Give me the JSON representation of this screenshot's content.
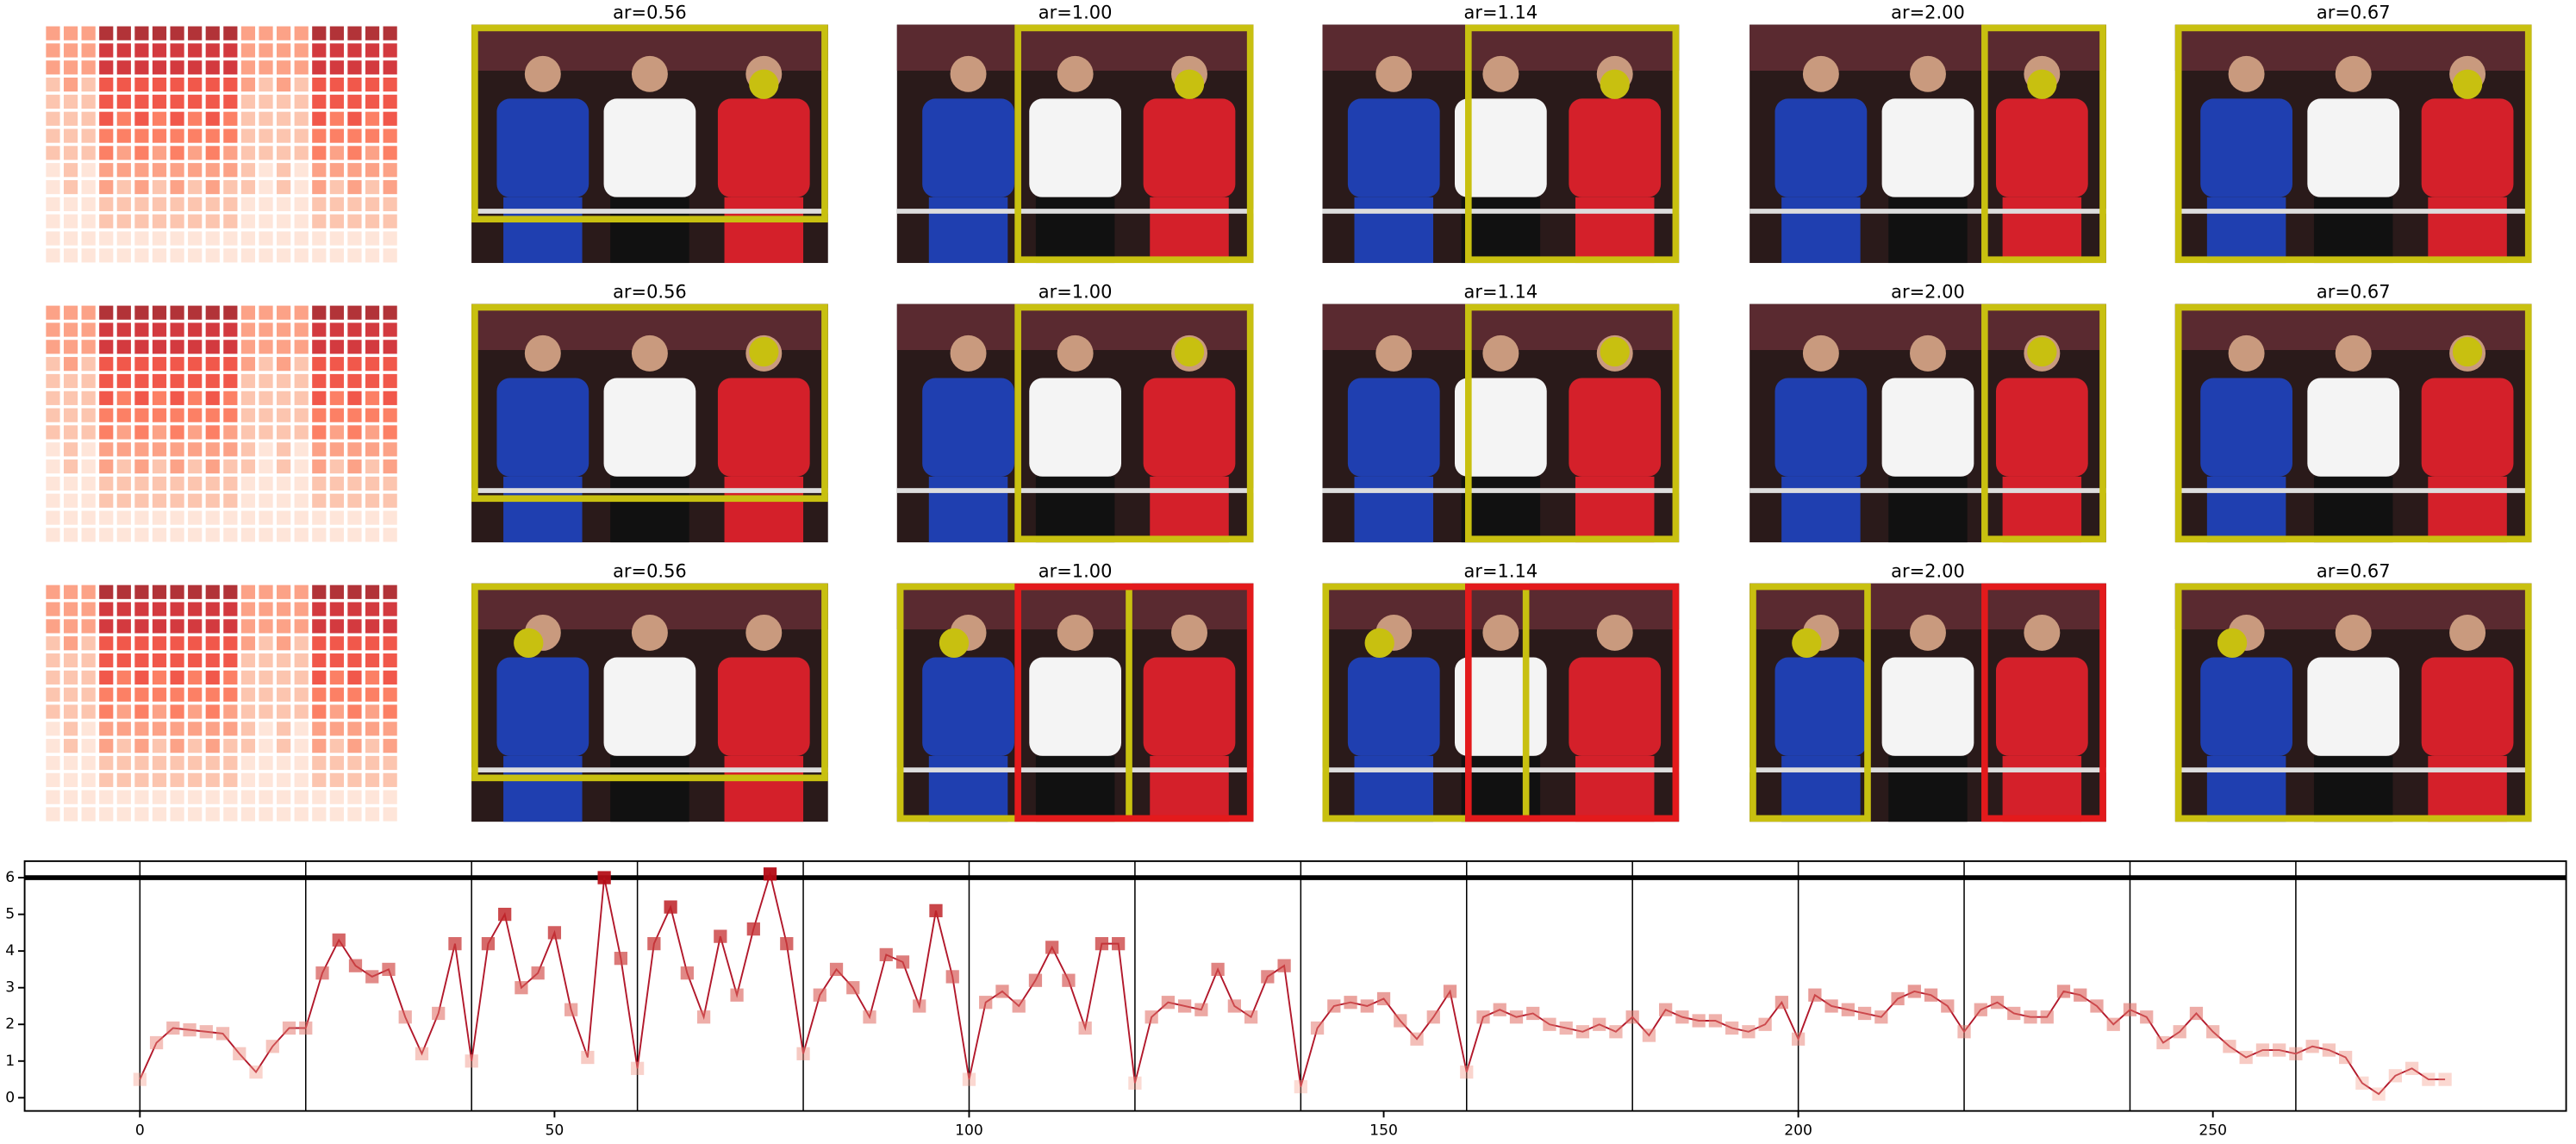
{
  "panel_titles": [
    [
      "ar=0.56",
      "ar=1.00",
      "ar=1.14",
      "ar=2.00",
      "ar=0.67"
    ],
    [
      "ar=0.56",
      "ar=1.00",
      "ar=1.14",
      "ar=2.00",
      "ar=0.67"
    ],
    [
      "ar=0.56",
      "ar=1.00",
      "ar=1.14",
      "ar=2.00",
      "ar=0.67"
    ]
  ],
  "chart_data": {
    "type": "line",
    "color": "#b2182b",
    "x": [
      0,
      2,
      4,
      6,
      8,
      10,
      12,
      14,
      16,
      18,
      20,
      22,
      24,
      26,
      28,
      30,
      32,
      34,
      36,
      38,
      40,
      42,
      44,
      46,
      48,
      50,
      52,
      54,
      56,
      58,
      60,
      62,
      64,
      66,
      68,
      70,
      72,
      74,
      76,
      78,
      80,
      82,
      84,
      86,
      88,
      90,
      92,
      94,
      96,
      98,
      100,
      102,
      104,
      106,
      108,
      110,
      112,
      114,
      116,
      118,
      120,
      122,
      124,
      126,
      128,
      130,
      132,
      134,
      136,
      138,
      140,
      142,
      144,
      146,
      148,
      150,
      152,
      154,
      156,
      158,
      160,
      162,
      164,
      166,
      168,
      170,
      172,
      174,
      176,
      178,
      180,
      182,
      184,
      186,
      188,
      190,
      192,
      194,
      196,
      198,
      200,
      202,
      204,
      206,
      208,
      210,
      212,
      214,
      216,
      218,
      220,
      222,
      224,
      226,
      228,
      230,
      232,
      234,
      236,
      238,
      240,
      242,
      244,
      246,
      248,
      250,
      252,
      254,
      256,
      258,
      260,
      262,
      264,
      266,
      268,
      270,
      272,
      274,
      276,
      278
    ],
    "values": [
      0.5,
      1.5,
      1.9,
      1.85,
      1.8,
      1.75,
      1.2,
      0.7,
      1.4,
      1.9,
      1.9,
      3.4,
      4.3,
      3.6,
      3.3,
      3.5,
      2.2,
      1.2,
      2.3,
      4.2,
      1.0,
      4.2,
      5.0,
      3.0,
      3.4,
      4.5,
      2.4,
      1.1,
      6.0,
      3.8,
      0.8,
      4.2,
      5.2,
      3.4,
      2.2,
      4.4,
      2.8,
      4.6,
      6.1,
      4.2,
      1.2,
      2.8,
      3.5,
      3.0,
      2.2,
      3.9,
      3.7,
      2.5,
      5.1,
      3.3,
      0.5,
      2.6,
      2.9,
      2.5,
      3.2,
      4.1,
      3.2,
      1.9,
      4.2,
      4.2,
      0.4,
      2.2,
      2.6,
      2.5,
      2.4,
      3.5,
      2.5,
      2.2,
      3.3,
      3.6,
      0.3,
      1.9,
      2.5,
      2.6,
      2.5,
      2.7,
      2.1,
      1.6,
      2.2,
      2.9,
      0.7,
      2.2,
      2.4,
      2.2,
      2.3,
      2.0,
      1.9,
      1.8,
      2.0,
      1.8,
      2.2,
      1.7,
      2.4,
      2.2,
      2.1,
      2.1,
      1.9,
      1.8,
      2.0,
      2.6,
      1.6,
      2.8,
      2.5,
      2.4,
      2.3,
      2.2,
      2.7,
      2.9,
      2.8,
      2.5,
      1.8,
      2.4,
      2.6,
      2.3,
      2.2,
      2.2,
      2.9,
      2.8,
      2.5,
      2.0,
      2.4,
      2.2,
      1.5,
      1.8,
      2.3,
      1.8,
      1.4,
      1.1,
      1.3,
      1.3,
      1.2,
      1.4,
      1.3,
      1.1,
      0.4,
      0.1,
      0.6,
      0.8,
      0.5,
      0.5
    ],
    "xlim": [
      -13.9,
      292.6
    ],
    "ylim": [
      -0.36,
      6.45
    ],
    "xticks": [
      0,
      50,
      100,
      150,
      200,
      250
    ],
    "yticks": [
      0,
      1,
      2,
      3,
      4,
      5,
      6
    ],
    "vlines": [
      0,
      20,
      40,
      60,
      80,
      100,
      120,
      140,
      160,
      180,
      200,
      220,
      240,
      260
    ],
    "hline": 6
  }
}
